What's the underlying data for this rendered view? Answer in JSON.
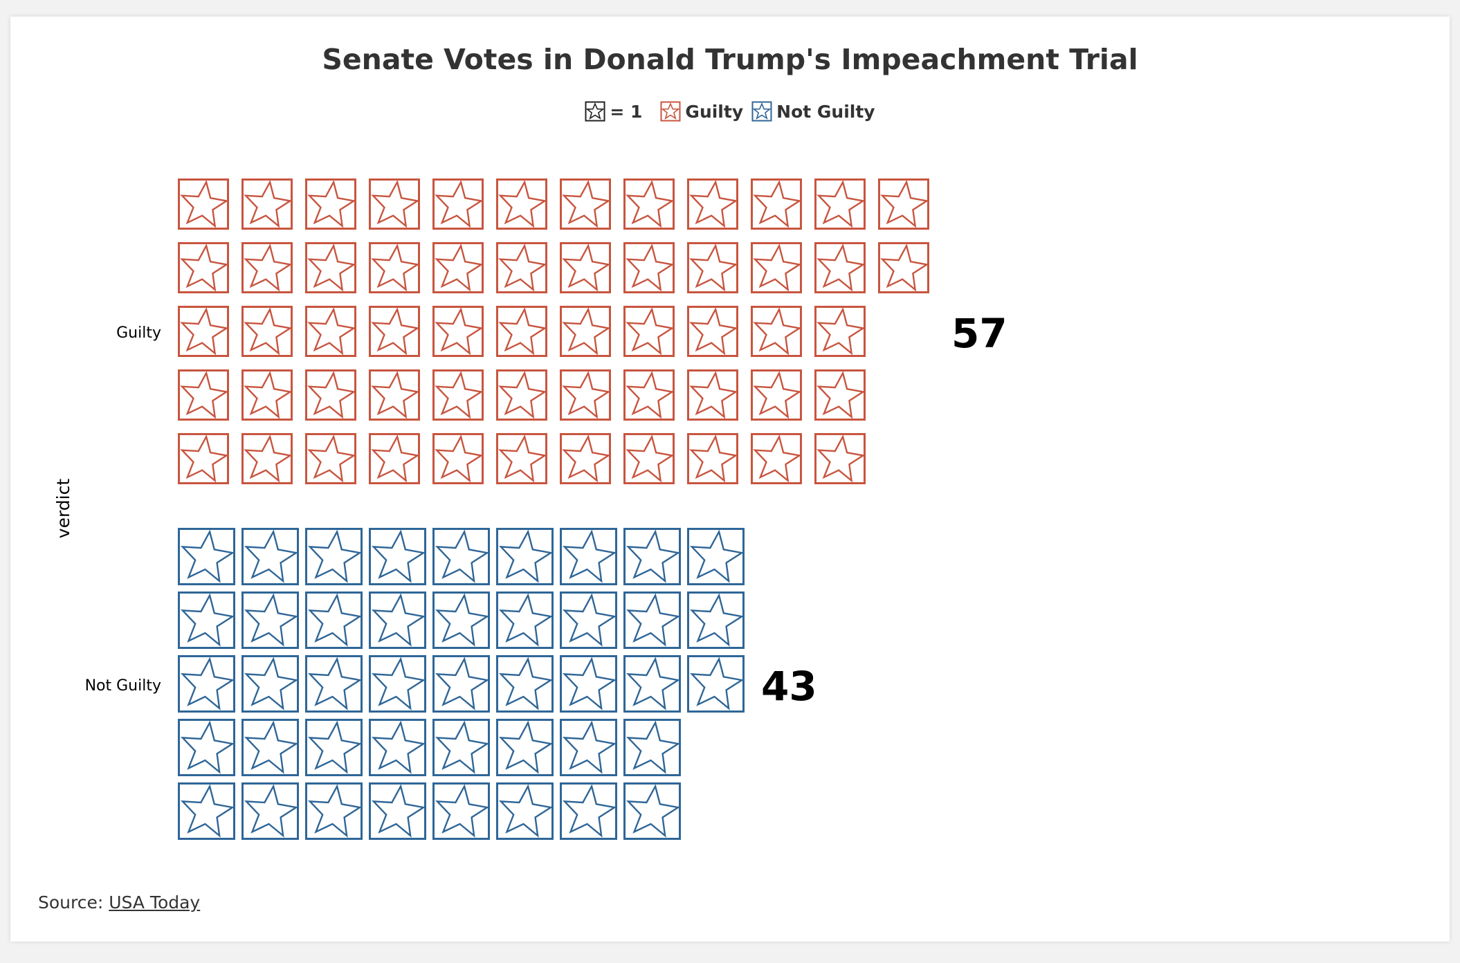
{
  "chart_data": {
    "type": "pictogram",
    "title": "Senate Votes in Donald Trump's Impeachment Trial",
    "ylabel": "verdict",
    "unit_label": "= 1",
    "categories": [
      "Guilty",
      "Not Guilty"
    ],
    "values": [
      57,
      43
    ],
    "series": [
      {
        "name": "Guilty",
        "value": 57,
        "color": "#c8553f"
      },
      {
        "name": "Not Guilty",
        "value": 43,
        "color": "#2f6697"
      }
    ],
    "icon": "star-box-icon"
  },
  "legend": {
    "unit_label": "= 1",
    "items": [
      "Guilty",
      "Not Guilty"
    ]
  },
  "source": {
    "prefix": "Source: ",
    "link_text": "USA Today"
  }
}
